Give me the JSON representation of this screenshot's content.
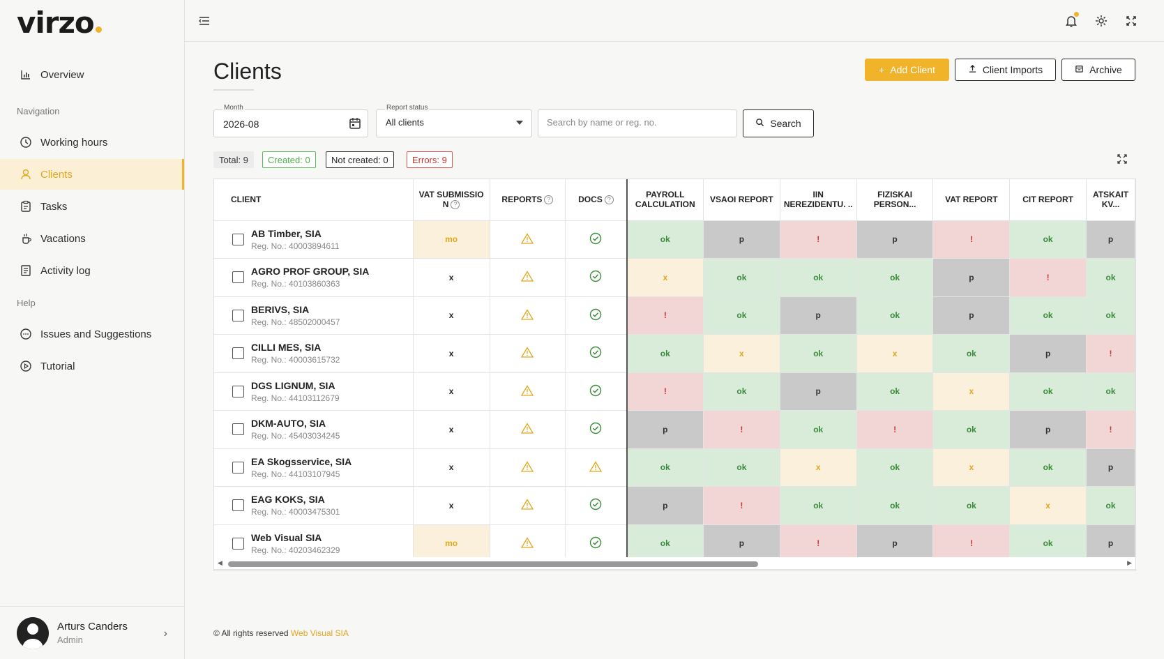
{
  "brand": {
    "name": "virzo"
  },
  "sidebar": {
    "overview": "Overview",
    "section_navigation": "Navigation",
    "items": [
      {
        "label": "Working hours",
        "icon": "clock-icon"
      },
      {
        "label": "Clients",
        "icon": "user-icon"
      },
      {
        "label": "Tasks",
        "icon": "clipboard-icon"
      },
      {
        "label": "Vacations",
        "icon": "beach-icon"
      },
      {
        "label": "Activity log",
        "icon": "log-icon"
      }
    ],
    "section_help": "Help",
    "help_items": [
      {
        "label": "Issues and Suggestions",
        "icon": "chat-icon"
      },
      {
        "label": "Tutorial",
        "icon": "play-icon"
      }
    ],
    "user": {
      "name": "Arturs Canders",
      "role": "Admin"
    }
  },
  "page": {
    "title": "Clients",
    "buttons": {
      "add": "Add Client",
      "imports": "Client Imports",
      "archive": "Archive"
    }
  },
  "filters": {
    "month_label": "Month",
    "month_value": "2026-08",
    "status_label": "Report status",
    "status_value": "All clients",
    "search_placeholder": "Search by name or reg. no.",
    "search_button": "Search"
  },
  "summary": {
    "total": "Total: 9",
    "created": "Created: 0",
    "not_created": "Not created: 0",
    "errors": "Errors: 9"
  },
  "table": {
    "columns": [
      "CLIENT",
      "VAT SUBMISSIO N",
      "REPORTS",
      "DOCS",
      "PAYROLL CALCULATION",
      "VSAOI REPORT",
      "IIN NEREZIDENTU. ..",
      "FIZISKAI PERSON...",
      "VAT REPORT",
      "CIT REPORT",
      "ATSKAIT KV..."
    ],
    "rows": [
      {
        "name": "AB Timber, SIA",
        "reg": "Reg. No.: 40003894611",
        "vat": "mo",
        "docs": "ok",
        "cells": [
          "ok",
          "p",
          "!",
          "p",
          "!",
          "ok",
          "p"
        ]
      },
      {
        "name": "AGRO PROF GROUP, SIA",
        "reg": "Reg. No.: 40103860363",
        "vat": "x",
        "docs": "ok",
        "cells": [
          "x",
          "ok",
          "ok",
          "ok",
          "p",
          "!",
          "ok"
        ]
      },
      {
        "name": "BERIVS, SIA",
        "reg": "Reg. No.: 48502000457",
        "vat": "x",
        "docs": "ok",
        "cells": [
          "!",
          "ok",
          "p",
          "ok",
          "p",
          "ok",
          "ok"
        ]
      },
      {
        "name": "CILLI MES, SIA",
        "reg": "Reg. No.: 40003615732",
        "vat": "x",
        "docs": "ok",
        "cells": [
          "ok",
          "x",
          "ok",
          "x",
          "ok",
          "p",
          "!"
        ]
      },
      {
        "name": "DGS LIGNUM, SIA",
        "reg": "Reg. No.: 44103112679",
        "vat": "x",
        "docs": "ok",
        "cells": [
          "!",
          "ok",
          "p",
          "ok",
          "x",
          "ok",
          "ok"
        ]
      },
      {
        "name": "DKM-AUTO, SIA",
        "reg": "Reg. No.: 45403034245",
        "vat": "x",
        "docs": "ok",
        "cells": [
          "p",
          "!",
          "ok",
          "!",
          "ok",
          "p",
          "!"
        ]
      },
      {
        "name": "EA Skogsservice, SIA",
        "reg": "Reg. No.: 44103107945",
        "vat": "x",
        "docs": "warn",
        "cells": [
          "ok",
          "ok",
          "x",
          "ok",
          "x",
          "ok",
          "p"
        ]
      },
      {
        "name": "EAG KOKS, SIA",
        "reg": "Reg. No.: 40003475301",
        "vat": "x",
        "docs": "ok",
        "cells": [
          "p",
          "!",
          "ok",
          "ok",
          "ok",
          "x",
          "ok"
        ]
      },
      {
        "name": "Web Visual SIA",
        "reg": "Reg. No.: 40203462329",
        "vat": "mo",
        "docs": "ok",
        "cells": [
          "ok",
          "p",
          "!",
          "p",
          "!",
          "ok",
          "p"
        ]
      }
    ]
  },
  "footer": {
    "text": "© All rights reserved",
    "link": "Web Visual SIA"
  },
  "colors": {
    "accent": "#f0b32a",
    "ok_bg": "#d9ecd9",
    "err_bg": "#f2d5d5",
    "p_bg": "#c9c9c9",
    "x_bg": "#fbf0dc"
  }
}
